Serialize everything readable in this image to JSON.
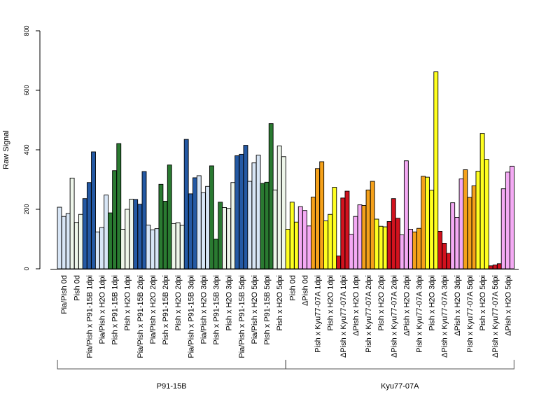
{
  "chart_data": {
    "type": "bar",
    "ylabel": "Raw Signal",
    "ylim": [
      0,
      800
    ],
    "yticks": [
      0,
      200,
      400,
      600,
      800
    ],
    "grid": false,
    "legend": "none",
    "colors": {
      "light_blue": "#d8e6f6",
      "light_green": "#eef6ea",
      "blue": "#2459a4",
      "green": "#2a7a31",
      "yellow": "#ffff20",
      "pink": "#f4aaf4",
      "orange": "#f5a11a",
      "red": "#d2121e"
    },
    "groups": [
      {
        "label": "P91-15B",
        "first": 0,
        "last": 17
      },
      {
        "label": "Kyu77-07A",
        "first": 18,
        "last": 35
      }
    ],
    "categories": [
      {
        "label": "Pia/Pish 0d",
        "color": "light_blue",
        "values": [
          207,
          176,
          186
        ]
      },
      {
        "label": "Pish 0d",
        "color": "light_green",
        "values": [
          305,
          156,
          183
        ]
      },
      {
        "label": "Pia/Pish x P91-15B 1dpi",
        "color": "blue",
        "values": [
          236,
          290,
          393
        ]
      },
      {
        "label": "Pia/Pish x H2O 1dpi",
        "color": "light_blue",
        "values": [
          124,
          139,
          248
        ]
      },
      {
        "label": "Pish x P91-15B 1dpi",
        "color": "green",
        "values": [
          188,
          330,
          421
        ]
      },
      {
        "label": "Pish x H2O 1dpi",
        "color": "light_green",
        "values": [
          133,
          200,
          234
        ]
      },
      {
        "label": "Pia/Pish x P91-15B 2dpi",
        "color": "blue",
        "values": [
          233,
          217,
          327
        ]
      },
      {
        "label": "Pia/Pish x H2O 2dpi",
        "color": "light_blue",
        "values": [
          147,
          131,
          135
        ]
      },
      {
        "label": "Pish x P91-15B 2dpi",
        "color": "green",
        "values": [
          284,
          227,
          349
        ]
      },
      {
        "label": "Pish x H2O 2dpi",
        "color": "light_green",
        "values": [
          152,
          155,
          146
        ]
      },
      {
        "label": "Pia/Pish x P91-15B 3dpi",
        "color": "blue",
        "values": [
          435,
          252,
          306
        ]
      },
      {
        "label": "Pia/Pish x H2O 3dpi",
        "color": "light_blue",
        "values": [
          313,
          256,
          277
        ]
      },
      {
        "label": "Pish x P91-15B 3dpi",
        "color": "green",
        "values": [
          346,
          100,
          224
        ]
      },
      {
        "label": "Pish x H2O 3dpi",
        "color": "light_green",
        "values": [
          206,
          203,
          290
        ]
      },
      {
        "label": "Pia/Pish x P91-15B 5dpi",
        "color": "blue",
        "values": [
          380,
          385,
          415
        ]
      },
      {
        "label": "Pia/Pish x H2O 5dpi",
        "color": "light_blue",
        "values": [
          294,
          356,
          382
        ]
      },
      {
        "label": "Pish x P91-15B 5dpi",
        "color": "green",
        "values": [
          287,
          291,
          488
        ]
      },
      {
        "label": "Pish x H2O 5dpi",
        "color": "light_green",
        "values": [
          265,
          413,
          377
        ]
      },
      {
        "label": "Pish 0d",
        "color": "yellow",
        "values": [
          133,
          224,
          157
        ]
      },
      {
        "label": "ΔPish 0d",
        "color": "pink",
        "values": [
          209,
          196,
          144
        ]
      },
      {
        "label": "Pish x Kyu77-07A 1dpi",
        "color": "orange",
        "values": [
          241,
          337,
          360
        ]
      },
      {
        "label": "Pish x H2O 1dpi",
        "color": "yellow",
        "values": [
          161,
          183,
          274
        ]
      },
      {
        "label": "ΔPish x Kyu77-07A 1dpi",
        "color": "red",
        "values": [
          43,
          238,
          261
        ]
      },
      {
        "label": "ΔPish x H2O 1dpi",
        "color": "pink",
        "values": [
          116,
          176,
          215
        ]
      },
      {
        "label": "Pish x Kyu77-07A 2dpi",
        "color": "orange",
        "values": [
          213,
          265,
          294
        ]
      },
      {
        "label": "Pish x H2O 2dpi",
        "color": "yellow",
        "values": [
          167,
          143,
          141
        ]
      },
      {
        "label": "ΔPish x Kyu77-07A 2dpi",
        "color": "red",
        "values": [
          159,
          236,
          170
        ]
      },
      {
        "label": "ΔPish x H2O 2dpi",
        "color": "pink",
        "values": [
          114,
          363,
          133
        ]
      },
      {
        "label": "Pish x Kyu77-07A 3dpi",
        "color": "orange",
        "values": [
          124,
          136,
          311
        ]
      },
      {
        "label": "Pish x H2O 3dpi",
        "color": "yellow",
        "values": [
          308,
          264,
          662
        ]
      },
      {
        "label": "ΔPish x Kyu77-07A 3dpi",
        "color": "red",
        "values": [
          126,
          86,
          52
        ]
      },
      {
        "label": "ΔPish x H2O 3dpi",
        "color": "pink",
        "values": [
          222,
          173,
          302
        ]
      },
      {
        "label": "Pish x Kyu77-07A 5dpi",
        "color": "orange",
        "values": [
          333,
          240,
          279
        ]
      },
      {
        "label": "Pish x H2O 5dpi",
        "color": "yellow",
        "values": [
          328,
          455,
          368
        ]
      },
      {
        "label": "ΔPish x Kyu77-07A 5dpi",
        "color": "red",
        "values": [
          10,
          13,
          17
        ]
      },
      {
        "label": "ΔPish x H2O 5dpi",
        "color": "pink",
        "values": [
          269,
          325,
          345
        ]
      }
    ]
  }
}
